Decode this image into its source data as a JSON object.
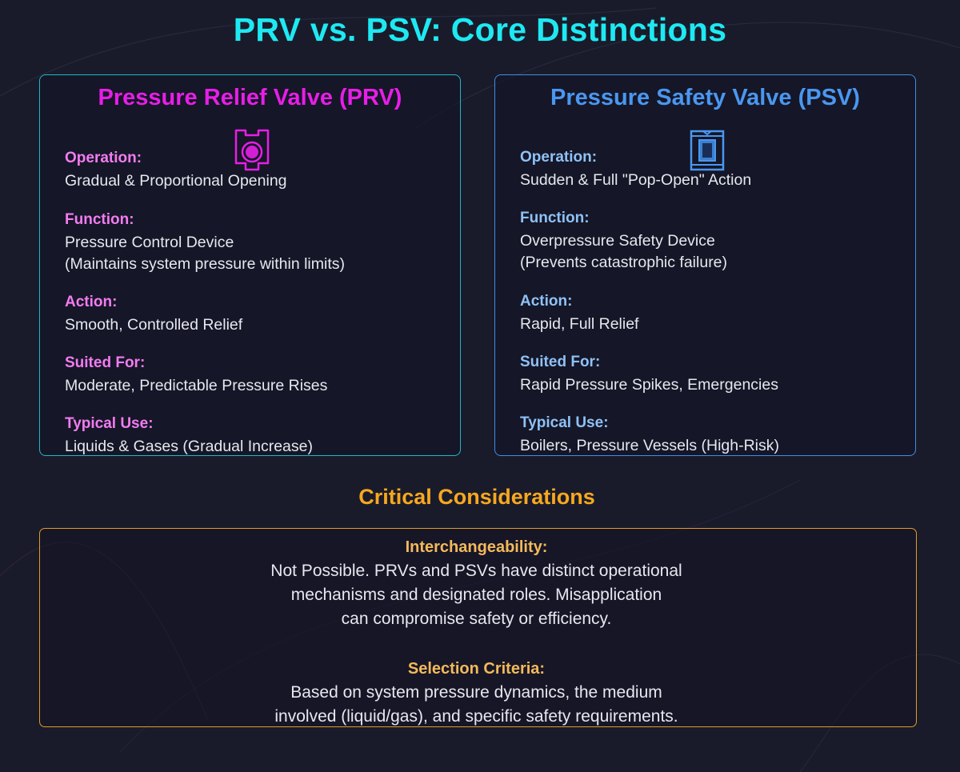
{
  "title": "PRV vs. PSV: Core Distinctions",
  "colors": {
    "background": "#1a1b2a",
    "title": "#1ee9f2",
    "prv_accent": "#e71ee8",
    "prv_label": "#f27cf0",
    "psv_accent": "#4a97f0",
    "psv_label": "#8fc1f6",
    "considerations_accent": "#f7a81f"
  },
  "prv": {
    "title": "Pressure Relief Valve (PRV)",
    "icon": "prv-valve-icon",
    "fields": [
      {
        "label": "Operation:",
        "value": "Gradual & Proportional Opening"
      },
      {
        "label": "Function:",
        "value": "Pressure Control Device\n(Maintains system pressure within limits)"
      },
      {
        "label": "Action:",
        "value": "Smooth, Controlled Relief"
      },
      {
        "label": "Suited For:",
        "value": "Moderate, Predictable Pressure Rises"
      },
      {
        "label": "Typical Use:",
        "value": "Liquids & Gases (Gradual Increase)"
      }
    ]
  },
  "psv": {
    "title": "Pressure Safety Valve (PSV)",
    "icon": "psv-valve-icon",
    "fields": [
      {
        "label": "Operation:",
        "value": "Sudden & Full \"Pop-Open\" Action"
      },
      {
        "label": "Function:",
        "value": "Overpressure Safety Device\n(Prevents catastrophic failure)"
      },
      {
        "label": "Action:",
        "value": "Rapid, Full Relief"
      },
      {
        "label": "Suited For:",
        "value": "Rapid Pressure Spikes, Emergencies"
      },
      {
        "label": "Typical Use:",
        "value": "Boilers, Pressure Vessels (High-Risk)"
      }
    ]
  },
  "considerations": {
    "title": "Critical Considerations",
    "items": [
      {
        "label": "Interchangeability:",
        "text": "Not Possible. PRVs and PSVs have distinct operational\nmechanisms and designated roles. Misapplication\ncan compromise safety or efficiency."
      },
      {
        "label": "Selection Criteria:",
        "text": "Based on system pressure dynamics, the medium\ninvolved (liquid/gas), and specific safety requirements."
      }
    ]
  }
}
